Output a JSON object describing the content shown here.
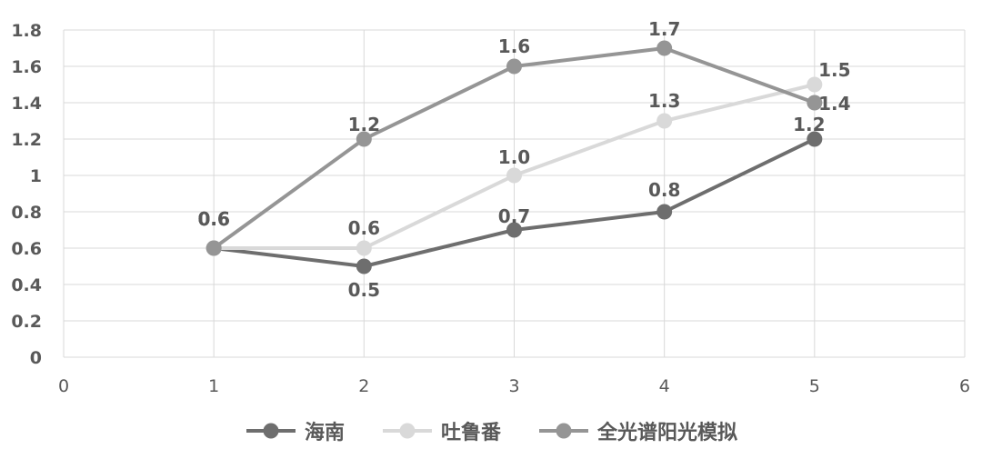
{
  "chart_data": {
    "type": "line",
    "xlim": [
      0,
      6
    ],
    "ylim": [
      0,
      1.8
    ],
    "x_ticks": [
      "0",
      "1",
      "2",
      "3",
      "4",
      "5",
      "6"
    ],
    "y_ticks": [
      "0",
      "0.2",
      "0.4",
      "0.6",
      "0.8",
      "1",
      "1.2",
      "1.4",
      "1.6",
      "1.8"
    ],
    "grid": true,
    "legend_position": "bottom",
    "series": [
      {
        "name": "海南",
        "color": "#6e6e6e",
        "x": [
          1,
          2,
          3,
          4,
          5
        ],
        "y": [
          0.6,
          0.5,
          0.7,
          0.8,
          1.2
        ],
        "labels": [
          "0.6",
          "0.5",
          "0.7",
          "0.8",
          "1.2"
        ]
      },
      {
        "name": "吐鲁番",
        "color": "#d9d9d9",
        "x": [
          1,
          2,
          3,
          4,
          5
        ],
        "y": [
          0.6,
          0.6,
          1.0,
          1.3,
          1.5
        ],
        "labels": [
          "0.6",
          "0.6",
          "1.0",
          "1.3",
          "1.5"
        ]
      },
      {
        "name": "全光谱阳光模拟",
        "color": "#959595",
        "x": [
          1,
          2,
          3,
          4,
          5
        ],
        "y": [
          0.6,
          1.2,
          1.6,
          1.7,
          1.4
        ],
        "labels": [
          "0.6",
          "1.2",
          "1.6",
          "1.7",
          "1.4"
        ]
      }
    ]
  }
}
